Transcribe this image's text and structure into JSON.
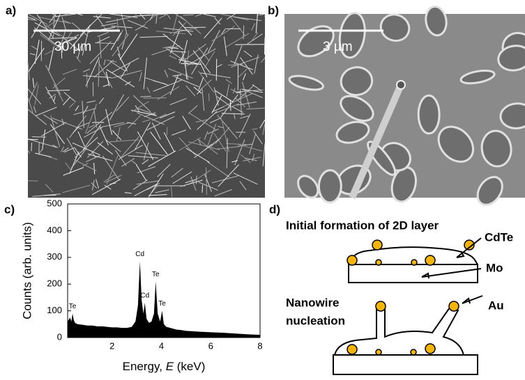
{
  "panels": {
    "a": {
      "label": "a)",
      "scale_bar": "30 µm"
    },
    "b": {
      "label": "b)",
      "scale_bar": "3 µm"
    },
    "c": {
      "label": "c)"
    },
    "d": {
      "label": "d)",
      "top_title": "Initial formation of 2D layer",
      "cdte": "CdTe",
      "mo": "Mo",
      "bottom_title_1": "Nanowire",
      "bottom_title_2": "nucleation",
      "au": "Au"
    }
  },
  "chart_data": {
    "type": "area",
    "color": "#000000",
    "x_label": {
      "prefix": "Energy, ",
      "symbol": "E",
      "suffix": " (keV)"
    },
    "y_label": "Counts (arb. units)",
    "x": [
      0.2,
      0.3,
      0.35,
      0.4,
      0.45,
      0.5,
      0.6,
      0.8,
      1.0,
      1.2,
      1.4,
      1.6,
      1.8,
      2.0,
      2.2,
      2.4,
      2.6,
      2.8,
      2.95,
      3.05,
      3.13,
      3.2,
      3.27,
      3.33,
      3.4,
      3.5,
      3.6,
      3.7,
      3.77,
      3.85,
      3.95,
      4.03,
      4.1,
      4.2,
      4.4,
      4.6,
      4.8,
      5.0,
      5.5,
      6.0,
      6.5,
      7.0,
      7.5,
      8.0
    ],
    "values": [
      60,
      75,
      60,
      90,
      65,
      55,
      50,
      48,
      45,
      45,
      42,
      42,
      40,
      38,
      38,
      36,
      36,
      40,
      60,
      120,
      285,
      140,
      90,
      130,
      70,
      55,
      60,
      90,
      210,
      90,
      60,
      100,
      50,
      40,
      35,
      30,
      28,
      25,
      22,
      20,
      18,
      15,
      12,
      10
    ],
    "annotations": [
      {
        "text": "Te",
        "x": 0.4,
        "y": 90
      },
      {
        "text": "Cd",
        "x": 3.13,
        "y": 285
      },
      {
        "text": "Cd",
        "x": 3.33,
        "y": 130
      },
      {
        "text": "Te",
        "x": 3.77,
        "y": 210
      },
      {
        "text": "Te",
        "x": 4.03,
        "y": 100
      }
    ],
    "xlim": [
      0.2,
      8
    ],
    "ylim": [
      0,
      500
    ],
    "xticks": [
      2,
      4,
      6,
      8
    ],
    "yticks": [
      0,
      100,
      200,
      300,
      400,
      500
    ]
  }
}
